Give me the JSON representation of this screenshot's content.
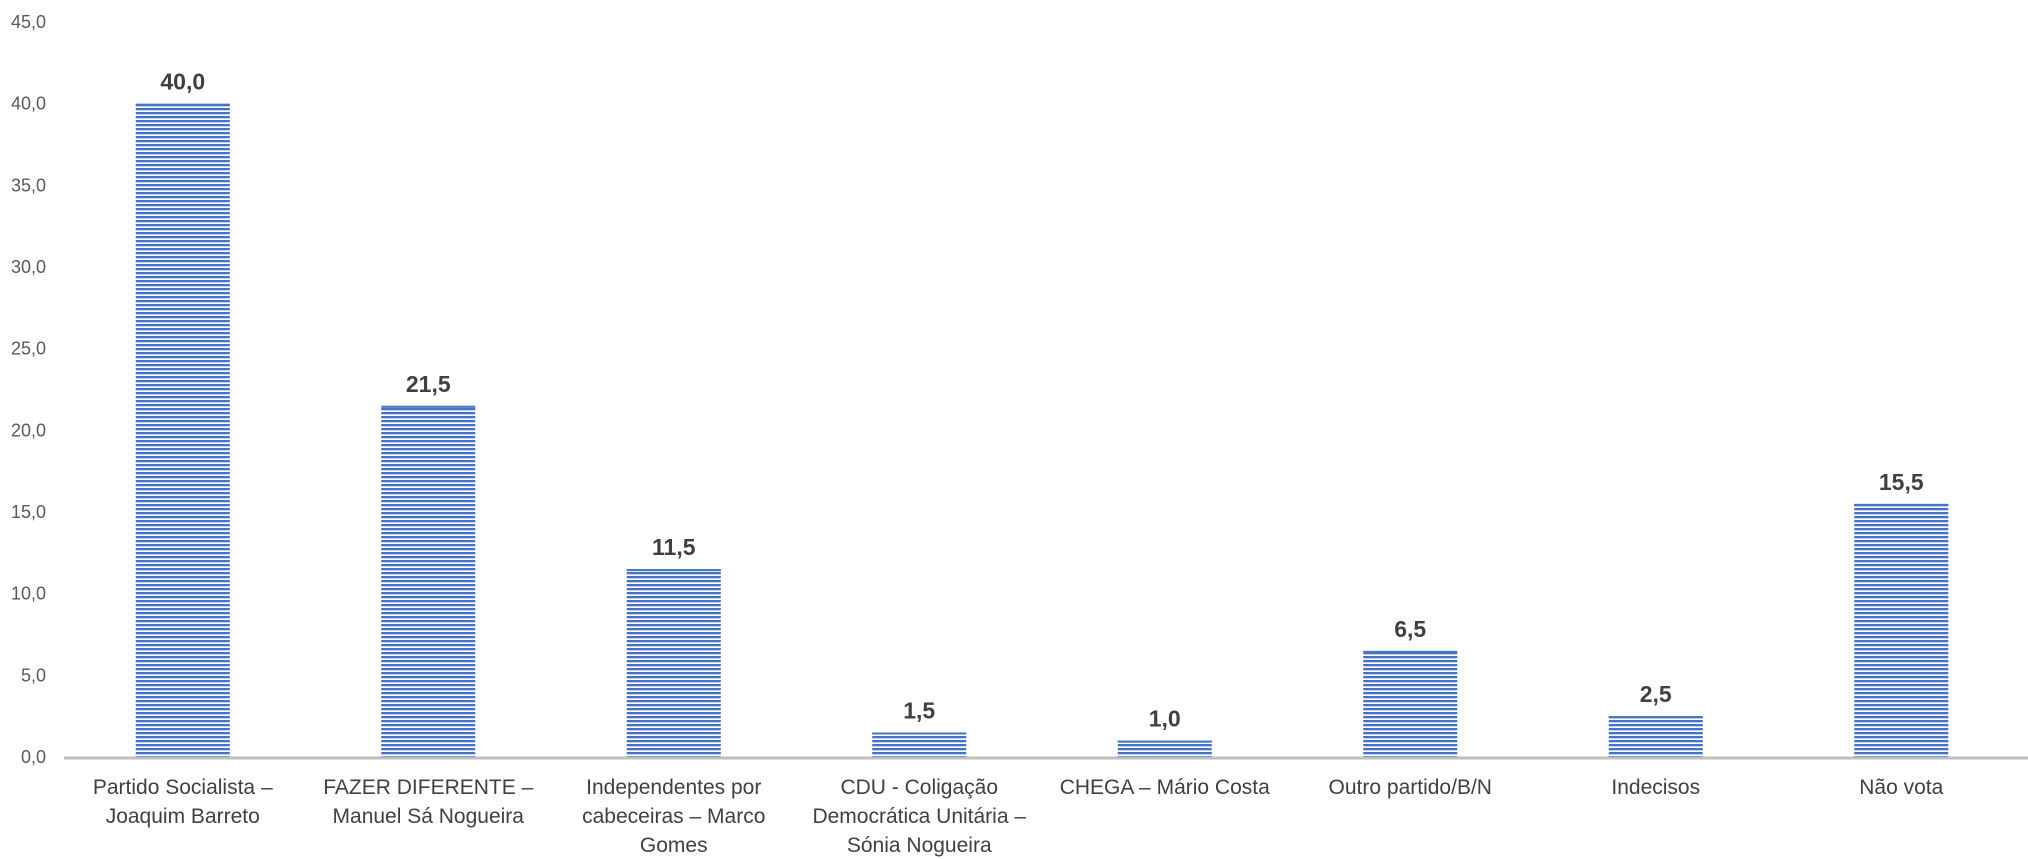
{
  "chart_data": {
    "type": "bar",
    "categories": [
      [
        "Partido Socialista –",
        "Joaquim Barreto"
      ],
      [
        "FAZER DIFERENTE –",
        "Manuel Sá Nogueira"
      ],
      [
        "Independentes por",
        "cabeceiras – Marco",
        "Gomes"
      ],
      [
        "CDU - Coligação",
        "Democrática Unitária –",
        "Sónia Nogueira"
      ],
      [
        "CHEGA – Mário Costa"
      ],
      [
        "Outro partido/B/N"
      ],
      [
        "Indecisos"
      ],
      [
        "Não vota"
      ]
    ],
    "values": [
      40.0,
      21.5,
      11.5,
      1.5,
      1.0,
      6.5,
      2.5,
      15.5
    ],
    "value_labels": [
      "40,0",
      "21,5",
      "11,5",
      "1,5",
      "1,0",
      "6,5",
      "2,5",
      "15,5"
    ],
    "y_ticks": [
      "0,0",
      "5,0",
      "10,0",
      "15,0",
      "20,0",
      "25,0",
      "30,0",
      "35,0",
      "40,0",
      "45,0"
    ],
    "ylim": [
      0,
      45
    ],
    "bar_color": "#4472C4",
    "bar_pattern": "horizontal-stripes",
    "grid": false,
    "legend": "none",
    "title": "",
    "xlabel": "",
    "ylabel": ""
  }
}
